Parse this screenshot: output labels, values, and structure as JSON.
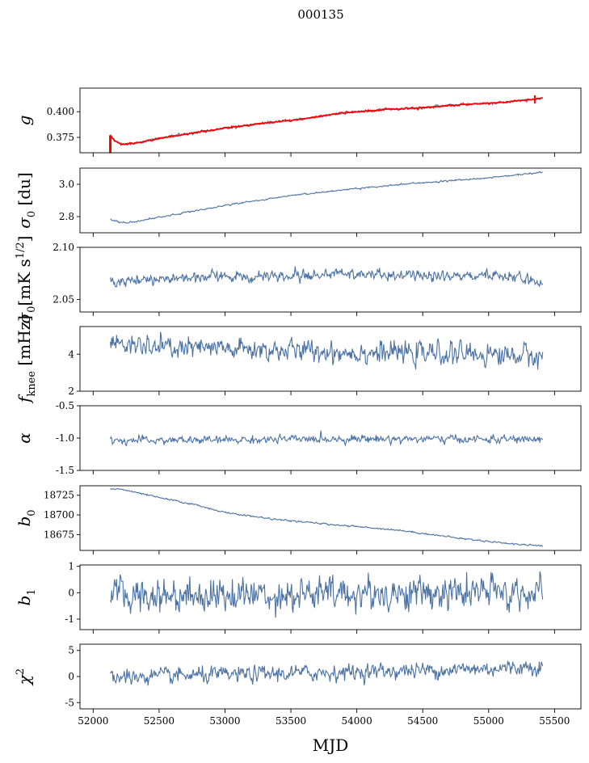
{
  "figure_title": "000135",
  "colors": {
    "series": "#4c72a4",
    "model": "#ff0000",
    "axis": "#000000"
  },
  "chart_data": [
    {
      "type": "line",
      "panel": "g",
      "ylabel": {
        "main": "g"
      },
      "ylim": [
        0.36,
        0.423
      ],
      "yticks": [
        "0.375",
        "0.400"
      ],
      "xlim": [
        51900,
        55700
      ],
      "series": [
        {
          "name": "data",
          "x_start": 52130,
          "x_end": 55410,
          "anchors": [
            [
              52130,
              0.377
            ],
            [
              52160,
              0.372
            ],
            [
              52200,
              0.369
            ],
            [
              52250,
              0.3685
            ],
            [
              52300,
              0.369
            ],
            [
              52500,
              0.374
            ],
            [
              52800,
              0.38
            ],
            [
              53000,
              0.384
            ],
            [
              53300,
              0.389
            ],
            [
              53600,
              0.393
            ],
            [
              53900,
              0.399
            ],
            [
              54200,
              0.402
            ],
            [
              54500,
              0.404
            ],
            [
              54800,
              0.407
            ],
            [
              55100,
              0.409
            ],
            [
              55410,
              0.413
            ]
          ],
          "noise": 0.0007
        },
        {
          "name": "model",
          "x_start": 52130,
          "x_end": 55410,
          "anchors": [
            [
              52130,
              0.377
            ],
            [
              52160,
              0.372
            ],
            [
              52200,
              0.369
            ],
            [
              52250,
              0.3685
            ],
            [
              52300,
              0.369
            ],
            [
              52500,
              0.374
            ],
            [
              52800,
              0.38
            ],
            [
              53000,
              0.384
            ],
            [
              53300,
              0.389
            ],
            [
              53600,
              0.393
            ],
            [
              53900,
              0.399
            ],
            [
              54200,
              0.402
            ],
            [
              54500,
              0.404
            ],
            [
              54800,
              0.407
            ],
            [
              55100,
              0.409
            ],
            [
              55410,
              0.413
            ]
          ],
          "noise": 0.0004
        }
      ]
    },
    {
      "type": "line",
      "panel": "sigma0",
      "ylabel": {
        "main": "σ",
        "sub": "0",
        "rest": " [du]"
      },
      "ylim": [
        2.7,
        3.1
      ],
      "yticks": [
        "2.8",
        "3.0"
      ],
      "xlim": [
        51900,
        55700
      ],
      "series": [
        {
          "name": "data",
          "x_start": 52130,
          "x_end": 55410,
          "anchors": [
            [
              52130,
              2.785
            ],
            [
              52200,
              2.765
            ],
            [
              52300,
              2.765
            ],
            [
              52600,
              2.81
            ],
            [
              53000,
              2.87
            ],
            [
              53500,
              2.93
            ],
            [
              54000,
              2.975
            ],
            [
              54500,
              3.01
            ],
            [
              55000,
              3.04
            ],
            [
              55410,
              3.075
            ]
          ],
          "noise": 0.003
        }
      ]
    },
    {
      "type": "line",
      "panel": "sigma0_mk",
      "ylabel": {
        "main": "σ",
        "sub": "0",
        "rest": "[mK s",
        "sup": "1/2",
        "tail": "]"
      },
      "ylim": [
        2.038,
        2.1
      ],
      "yticks": [
        "2.05",
        "2.10"
      ],
      "xlim": [
        51900,
        55700
      ],
      "series": [
        {
          "name": "data",
          "x_start": 52130,
          "x_end": 55410,
          "anchors": [
            [
              52130,
              2.067
            ],
            [
              52500,
              2.07
            ],
            [
              53000,
              2.072
            ],
            [
              53500,
              2.072
            ],
            [
              53800,
              2.075
            ],
            [
              54200,
              2.073
            ],
            [
              54700,
              2.072
            ],
            [
              55100,
              2.073
            ],
            [
              55410,
              2.068
            ]
          ],
          "noise": 0.003
        }
      ]
    },
    {
      "type": "line",
      "panel": "fknee",
      "ylabel": {
        "main": "f",
        "sub": "knee",
        "rest": " [mHz]"
      },
      "ylim": [
        2.0,
        5.5
      ],
      "yticks": [
        "2",
        "4"
      ],
      "xlim": [
        51900,
        55700
      ],
      "series": [
        {
          "name": "data",
          "x_start": 52130,
          "x_end": 55410,
          "anchors": [
            [
              52130,
              4.6
            ],
            [
              52300,
              4.4
            ],
            [
              52800,
              4.3
            ],
            [
              53500,
              4.2
            ],
            [
              54000,
              4.1
            ],
            [
              54500,
              4.05
            ],
            [
              55000,
              4.0
            ],
            [
              55410,
              3.9
            ]
          ],
          "noise": 0.35
        }
      ]
    },
    {
      "type": "line",
      "panel": "alpha",
      "ylabel": {
        "main": "α"
      },
      "ylim": [
        -1.5,
        -0.5
      ],
      "yticks": [
        "-1.5",
        "-1.0",
        "-0.5"
      ],
      "xlim": [
        51900,
        55700
      ],
      "series": [
        {
          "name": "data",
          "x_start": 52130,
          "x_end": 55410,
          "anchors": [
            [
              52130,
              -1.04
            ],
            [
              53000,
              -1.03
            ],
            [
              54000,
              -1.01
            ],
            [
              55000,
              -1.02
            ],
            [
              55410,
              -1.02
            ]
          ],
          "noise": 0.035
        }
      ]
    },
    {
      "type": "line",
      "panel": "b0",
      "ylabel": {
        "main": "b",
        "sub": "0"
      },
      "ylim": [
        18655,
        18737
      ],
      "yticks": [
        "18675",
        "18700",
        "18725"
      ],
      "xlim": [
        51900,
        55700
      ],
      "series": [
        {
          "name": "data",
          "x_start": 52130,
          "x_end": 55410,
          "anchors": [
            [
              52130,
              18733
            ],
            [
              52200,
              18733
            ],
            [
              52500,
              18722
            ],
            [
              52800,
              18712
            ],
            [
              53000,
              18703
            ],
            [
              53400,
              18694
            ],
            [
              53800,
              18688
            ],
            [
              54300,
              18681
            ],
            [
              54800,
              18670
            ],
            [
              55200,
              18663
            ],
            [
              55410,
              18661
            ]
          ],
          "noise": 0.6
        }
      ]
    },
    {
      "type": "line",
      "panel": "b1",
      "ylabel": {
        "main": "b",
        "sub": "1"
      },
      "ylim": [
        -1.4,
        1.05
      ],
      "yticks": [
        "-1",
        "0",
        "1"
      ],
      "xlim": [
        51900,
        55700
      ],
      "series": [
        {
          "name": "data",
          "x_start": 52130,
          "x_end": 55410,
          "anchors": [
            [
              52130,
              -0.1
            ],
            [
              55410,
              0.0
            ]
          ],
          "noise": 0.38
        }
      ]
    },
    {
      "type": "line",
      "panel": "chi2",
      "ylabel": {
        "main": "χ",
        "sup": "2"
      },
      "ylim": [
        -6.2,
        6.2
      ],
      "yticks": [
        "-5",
        "0",
        "5"
      ],
      "xlim": [
        51900,
        55700
      ],
      "series": [
        {
          "name": "data",
          "x_start": 52130,
          "x_end": 55410,
          "anchors": [
            [
              52130,
              -0.2
            ],
            [
              53000,
              0.3
            ],
            [
              54000,
              0.9
            ],
            [
              55000,
              1.5
            ],
            [
              55410,
              2.0
            ]
          ],
          "noise": 0.9
        }
      ]
    }
  ],
  "x_axis": {
    "label": "MJD",
    "ticks": [
      52000,
      52500,
      53000,
      53500,
      54000,
      54500,
      55000,
      55500
    ]
  }
}
